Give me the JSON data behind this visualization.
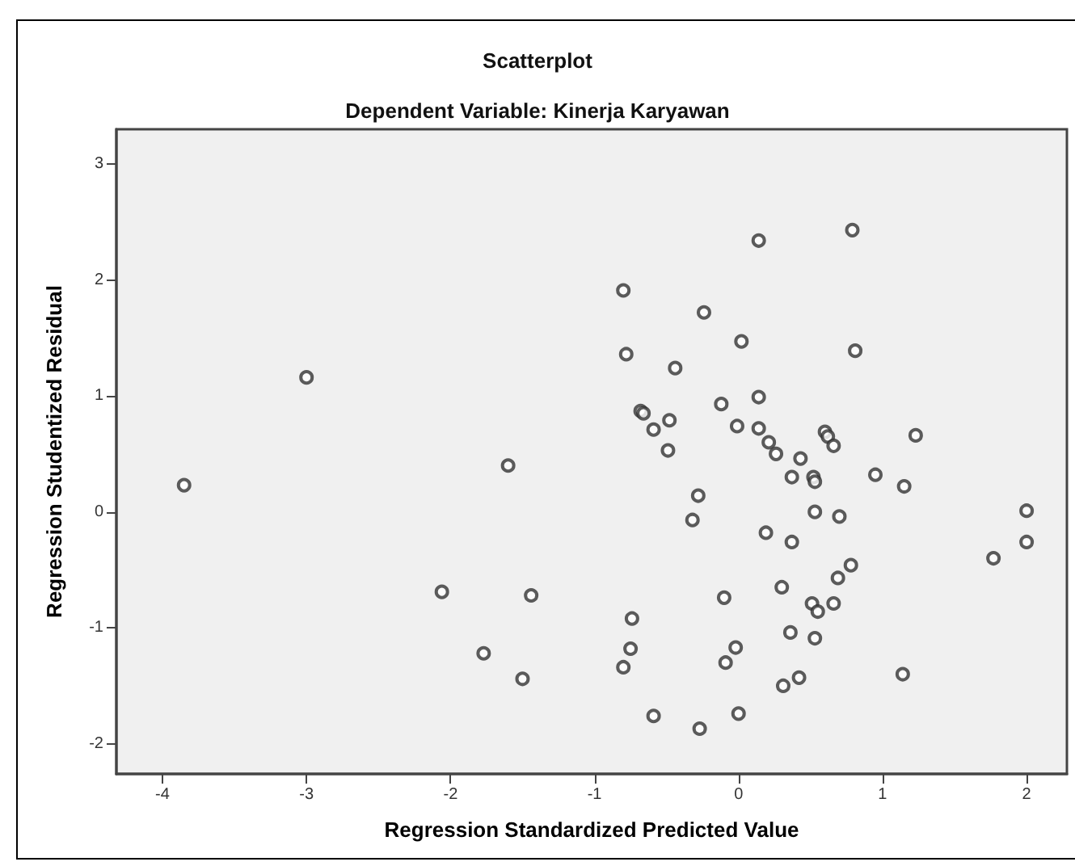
{
  "chart_data": {
    "type": "scatter",
    "title": "Scatterplot",
    "subtitle": "Dependent Variable: Kinerja Karyawan",
    "xlabel": "Regression Standardized Predicted Value",
    "ylabel": "Regression Studentized Residual",
    "x": [
      -3.85,
      -3.0,
      -1.6,
      -2.06,
      -1.44,
      -1.77,
      -1.5,
      0.14,
      0.79,
      -0.8,
      -0.24,
      -0.78,
      0.02,
      0.81,
      -0.44,
      -0.68,
      -0.66,
      -0.48,
      -0.59,
      -0.49,
      -0.12,
      0.14,
      -0.01,
      0.14,
      0.21,
      0.26,
      0.43,
      0.6,
      0.62,
      0.66,
      1.23,
      0.37,
      0.52,
      0.53,
      0.95,
      1.15,
      -0.28,
      -0.32,
      0.19,
      0.53,
      0.7,
      0.37,
      2.0,
      2.0,
      1.77,
      0.78,
      0.69,
      0.3,
      -0.1,
      0.51,
      0.55,
      0.66,
      -0.74,
      0.36,
      0.53,
      -0.75,
      -0.02,
      -0.8,
      -0.09,
      0.42,
      0.31,
      1.14,
      -0.59,
      -0.27,
      0.0
    ],
    "values": [
      0.23,
      1.16,
      0.4,
      -0.69,
      -0.72,
      -1.22,
      -1.44,
      2.34,
      2.43,
      1.91,
      1.72,
      1.36,
      1.47,
      1.39,
      1.24,
      0.87,
      0.85,
      0.79,
      0.71,
      0.53,
      0.93,
      0.99,
      0.74,
      0.72,
      0.6,
      0.5,
      0.46,
      0.69,
      0.65,
      0.57,
      0.66,
      0.3,
      0.3,
      0.26,
      0.32,
      0.22,
      0.14,
      -0.07,
      -0.18,
      0.0,
      -0.04,
      -0.26,
      0.01,
      -0.26,
      -0.4,
      -0.46,
      -0.57,
      -0.65,
      -0.74,
      -0.79,
      -0.86,
      -0.79,
      -0.92,
      -1.04,
      -1.09,
      -1.18,
      -1.17,
      -1.34,
      -1.3,
      -1.43,
      -1.5,
      -1.4,
      -1.76,
      -1.87,
      -1.74
    ],
    "color": "#333333",
    "marker": "circle",
    "xlim": [
      -4.32,
      2.28
    ],
    "xticks": [
      -4,
      -3,
      -2,
      -1,
      0,
      1,
      2
    ],
    "ylim": [
      -2.26,
      3.3
    ],
    "yticks": [
      -2,
      -1,
      0,
      1,
      2,
      3
    ]
  }
}
